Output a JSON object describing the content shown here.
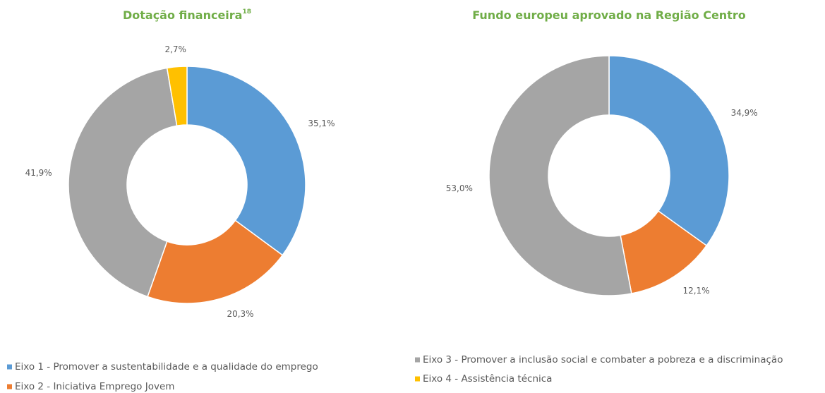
{
  "chart_data": [
    {
      "type": "donut",
      "title": "Dotação financeira",
      "title_note": "18",
      "values": [
        35.1,
        20.3,
        41.9,
        2.7
      ],
      "value_labels": [
        "35,1%",
        "20,3%",
        "41,9%",
        "2,7%"
      ]
    },
    {
      "type": "donut",
      "title": "Fundo europeu aprovado na Região Centro",
      "values": [
        34.9,
        12.1,
        53.0
      ],
      "value_labels": [
        "34,9%",
        "12,1%",
        "53,0%"
      ]
    }
  ],
  "legend": {
    "labels": [
      "Eixo 1 - Promover a sustentabilidade e a qualidade do emprego",
      "Eixo 2 - Iniciativa Emprego Jovem",
      "Eixo 3 - Promover a inclusão social e combater a pobreza e a discriminação",
      "Eixo 4 - Assistência técnica"
    ],
    "colors": [
      "#5b9bd5",
      "#ed7d31",
      "#a5a5a5",
      "#ffc000"
    ]
  }
}
